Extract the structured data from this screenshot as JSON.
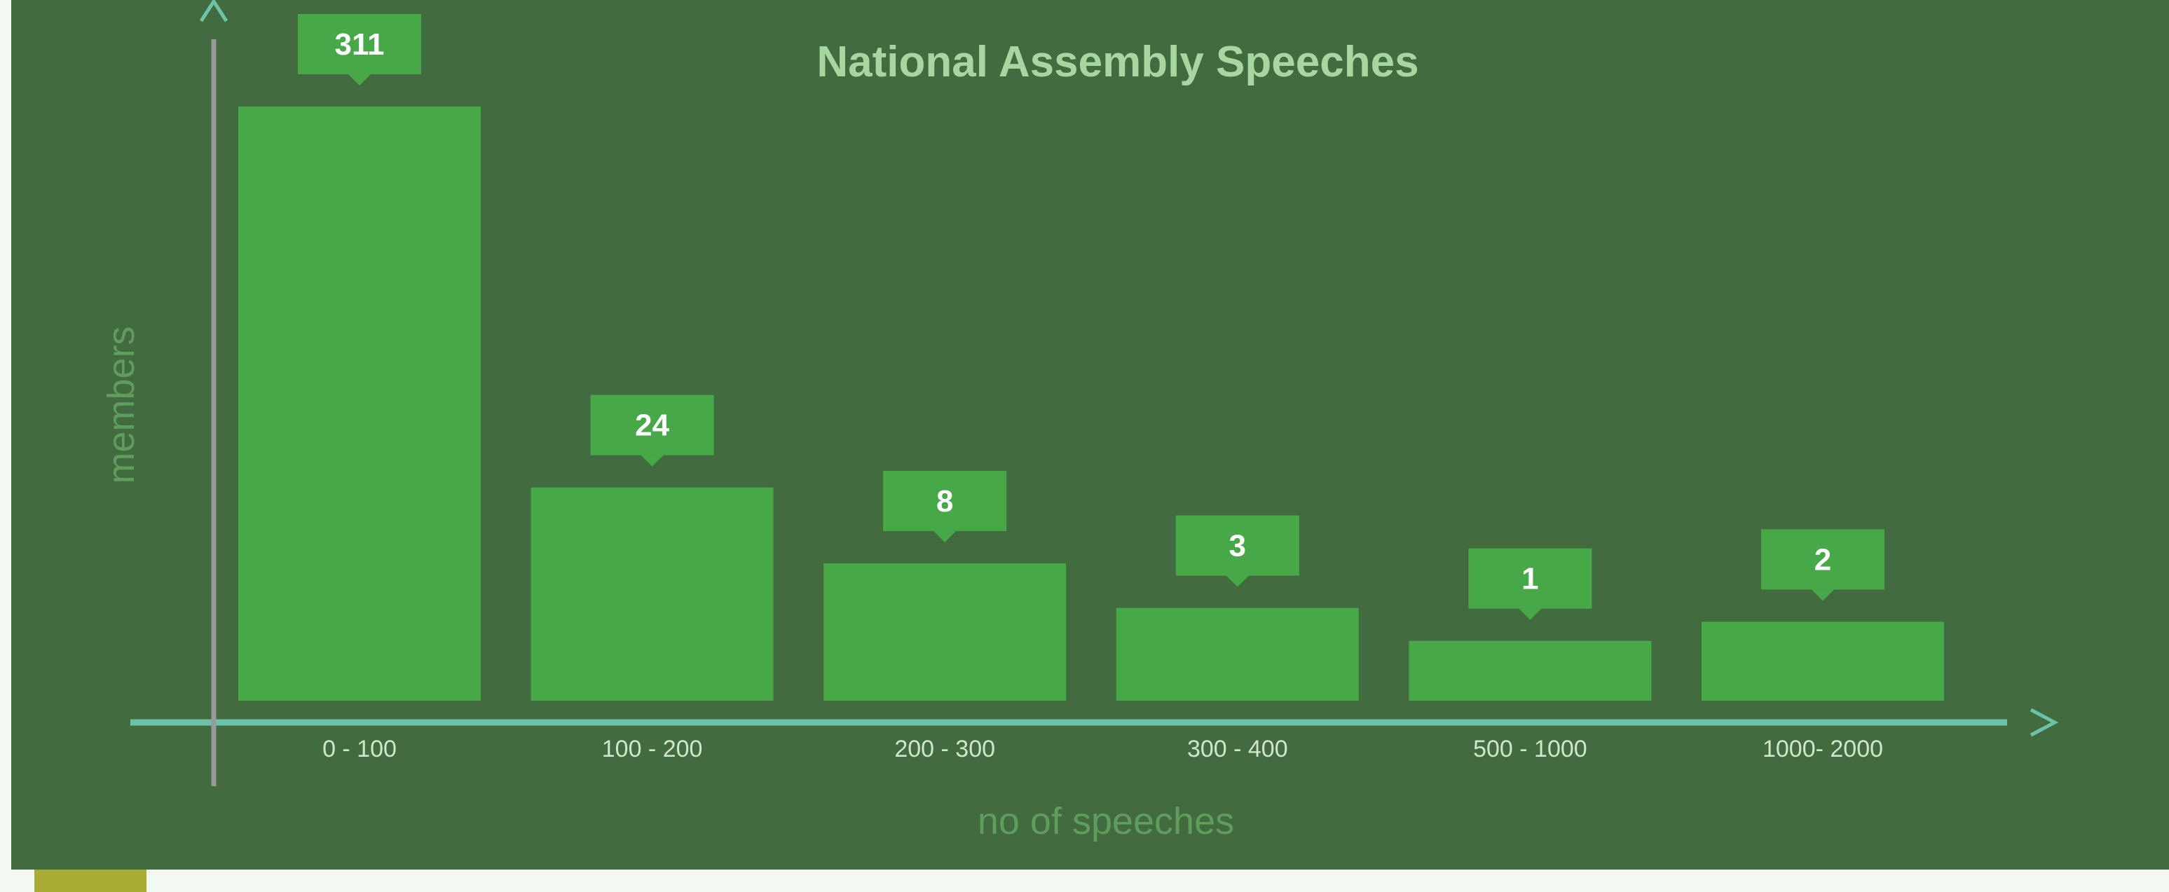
{
  "chart_data": {
    "type": "bar",
    "title": "National Assembly Speeches",
    "xlabel": "no of speeches",
    "ylabel": "members",
    "categories": [
      "0 - 100",
      "100 - 200",
      "200 - 300",
      "300 - 400",
      "500 - 1000",
      "1000- 2000"
    ],
    "values": [
      311,
      24,
      8,
      3,
      1,
      2
    ],
    "grid": false,
    "legend": "none",
    "colors": {
      "background": "#426c40",
      "bar": "#47a847",
      "label_box": "#47a847",
      "x_axis": "#6dc2aa",
      "y_axis": "#9a9a9a",
      "arrow": "#6dc2aa",
      "title": "#a7d69f",
      "axis_label": "#5f9d5c",
      "tick_label": "#cfe6cb"
    }
  }
}
